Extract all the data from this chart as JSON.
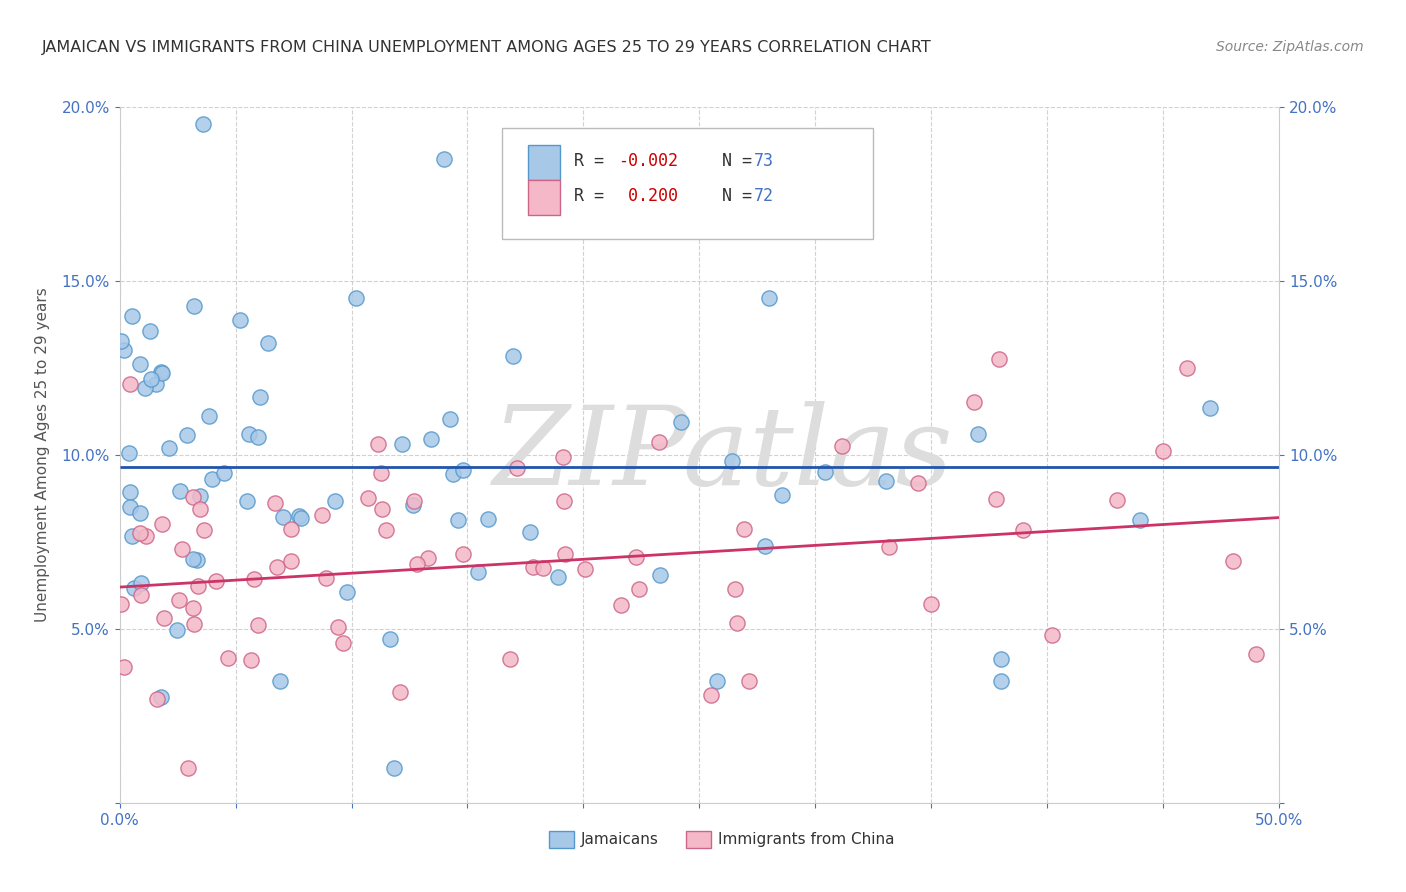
{
  "title": "JAMAICAN VS IMMIGRANTS FROM CHINA UNEMPLOYMENT AMONG AGES 25 TO 29 YEARS CORRELATION CHART",
  "source": "Source: ZipAtlas.com",
  "ylabel": "Unemployment Among Ages 25 to 29 years",
  "xlim": [
    0.0,
    0.5
  ],
  "ylim": [
    0.0,
    0.2
  ],
  "blue_color": "#a8c8e8",
  "blue_edge_color": "#5599cc",
  "pink_color": "#f4b8c8",
  "pink_edge_color": "#cc6688",
  "blue_line_color": "#2255aa",
  "pink_line_color": "#cc3366",
  "watermark": "ZIPatlas",
  "watermark_color": "#dddddd",
  "r1_val": "-0.002",
  "n1_val": "73",
  "r2_val": "0.200",
  "n2_val": "72",
  "r_color": "#cc0000",
  "n_color": "#4472C4",
  "background_color": "#ffffff",
  "grid_color": "#cccccc",
  "title_color": "#333333",
  "source_color": "#888888",
  "axis_color": "#4472C4",
  "label_color": "#555555"
}
